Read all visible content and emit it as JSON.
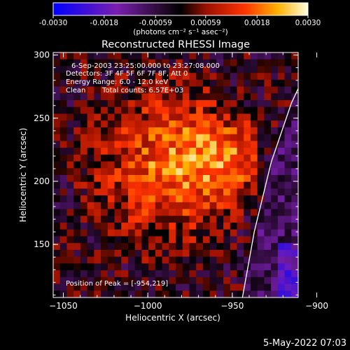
{
  "chart_data": {
    "type": "heatmap",
    "title": "Reconstructed RHESSI Image",
    "colorbar": {
      "ticks": [
        "-0.0030",
        "-0.0018",
        "-0.00059",
        "0.00059",
        "0.0018",
        "0.0030"
      ],
      "tick_values": [
        -0.003,
        -0.0018,
        -0.00059,
        0.00059,
        0.0018,
        0.003
      ],
      "range": [
        -0.003,
        0.003
      ],
      "units_label": "(photons cm⁻² s⁻¹ asec⁻²)",
      "colors": [
        "#0000ff",
        "#7a1fb0",
        "#2a0a33",
        "#000000",
        "#9a1000",
        "#ff3300",
        "#ffb000",
        "#ffffe0"
      ]
    },
    "xlabel": "Heliocentric X (arcsec)",
    "ylabel": "Heliocentric Y (arcsec)",
    "xlim": [
      -1056,
      -911
    ],
    "ylim": [
      108,
      302
    ],
    "x_ticks": [
      -1050,
      -1000,
      -950,
      -900
    ],
    "y_ticks": [
      150,
      200,
      250,
      300
    ],
    "annotations": {
      "time_range": "6-Sep-2003 23:25:00.000 to 23:27:08.000",
      "detectors": "Detectors: 3F 4F 5F 6F 7F 8F, Att 0",
      "energy": "Energy Range: 6.0 - 12.0 keV",
      "clean": "Clean",
      "total_counts": "Total counts: 6.57E+03",
      "peak": "Position of Peak = [-954,219]"
    },
    "limb_curve": [
      [
        -944,
        108
      ],
      [
        -937,
        160
      ],
      [
        -927,
        215
      ],
      [
        -915,
        262
      ],
      [
        -901,
        302
      ]
    ],
    "emission_source": {
      "peak": [
        -954,
        219
      ],
      "extent_x": [
        -1050,
        -938
      ],
      "extent_y": [
        125,
        295
      ],
      "peak_level": 0.003,
      "background_east": 0.0012,
      "background_west": -0.0008
    }
  },
  "footer": {
    "timestamp": "5-May-2022 07:03"
  }
}
